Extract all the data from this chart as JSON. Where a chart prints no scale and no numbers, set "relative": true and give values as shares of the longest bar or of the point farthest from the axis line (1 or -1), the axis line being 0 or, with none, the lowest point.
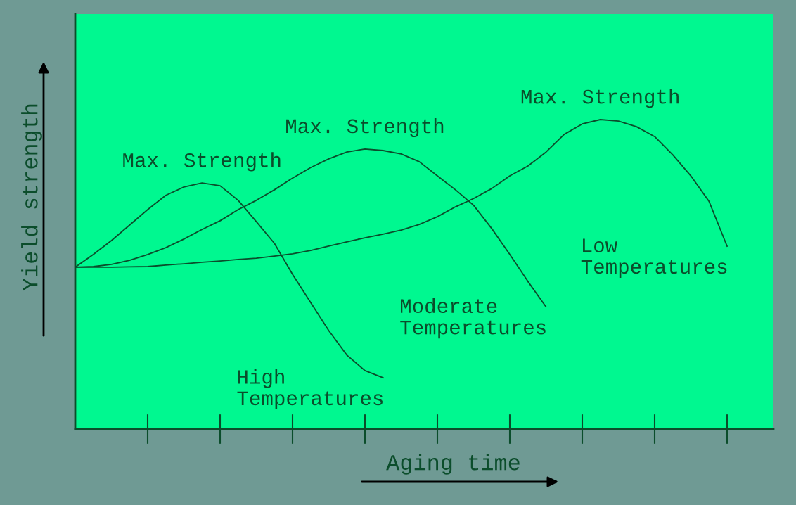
{
  "chart_data": {
    "type": "line",
    "relative": true,
    "xlabel": "Aging time",
    "ylabel": "Yield strength",
    "categories": [
      null,
      null,
      null,
      null,
      null,
      null,
      null,
      null,
      null,
      null,
      null,
      null,
      null,
      null,
      null,
      null,
      null,
      null,
      null,
      null,
      null,
      null,
      null,
      null,
      null,
      null,
      null,
      null,
      null,
      null,
      null,
      null,
      null,
      null,
      null,
      null,
      null
    ],
    "annotations": [
      "Max. Strength",
      "Max. Strength",
      "Max. Strength"
    ],
    "series": [
      {
        "name": "High Temperatures",
        "color": "#0b4d2b",
        "values": [
          0.523,
          0.564,
          0.609,
          0.659,
          0.709,
          0.755,
          0.782,
          0.795,
          0.786,
          0.739,
          0.67,
          0.6,
          0.5,
          0.409,
          0.318,
          0.239,
          0.189,
          0.166,
          null,
          null,
          null,
          null,
          null,
          null,
          null,
          null,
          null,
          null,
          null,
          null,
          null,
          null,
          null,
          null,
          null,
          null,
          null
        ]
      },
      {
        "name": "Moderate Temperatures",
        "color": "#0b4d2b",
        "values": [
          0.523,
          0.525,
          0.532,
          0.545,
          0.564,
          0.586,
          0.614,
          0.645,
          0.673,
          0.709,
          0.739,
          0.773,
          0.811,
          0.845,
          0.873,
          0.895,
          0.905,
          0.9,
          0.889,
          0.864,
          0.818,
          0.773,
          0.723,
          0.648,
          0.564,
          0.477,
          0.395,
          null,
          null,
          null,
          null,
          null,
          null,
          null,
          null,
          null,
          null
        ]
      },
      {
        "name": "Low Temperatures",
        "color": "#0b4d2b",
        "values": [
          0.523,
          0.523,
          0.523,
          0.524,
          0.525,
          0.53,
          0.534,
          0.539,
          0.543,
          0.548,
          0.552,
          0.559,
          0.566,
          0.577,
          0.591,
          0.605,
          0.618,
          0.63,
          0.643,
          0.661,
          0.686,
          0.718,
          0.745,
          0.777,
          0.818,
          0.85,
          0.895,
          0.952,
          0.986,
          1.0,
          0.995,
          0.977,
          0.945,
          0.886,
          0.818,
          0.736,
          0.591
        ]
      }
    ],
    "marker": "none",
    "line_style": "solid",
    "grid": false,
    "legend": false
  }
}
